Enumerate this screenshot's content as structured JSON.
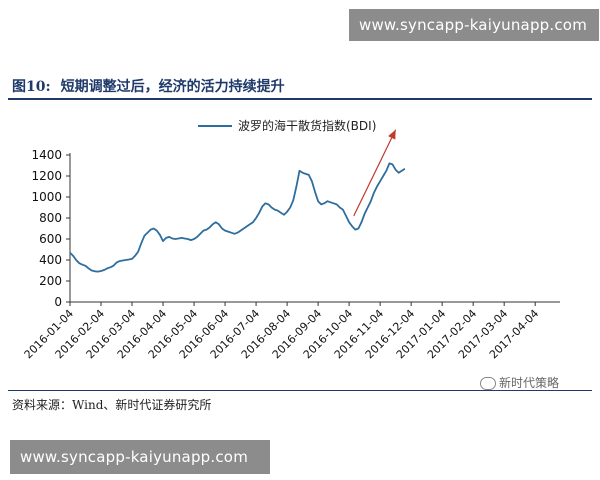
{
  "watermark": "www.syncapp-kaiyunapp.com",
  "figure": {
    "label": "图10:",
    "title": "短期调整过后，经济的活力持续提升",
    "source": "资料来源：Wind、新时代证券研究所",
    "brand": "新时代策略"
  },
  "chart_data": {
    "type": "line",
    "title": "",
    "xlabel": "",
    "ylabel": "",
    "ylim": [
      0,
      1400
    ],
    "yticks": [
      0,
      200,
      400,
      600,
      800,
      1000,
      1200,
      1400
    ],
    "xticks": [
      "2016-01-04",
      "2016-02-04",
      "2016-03-04",
      "2016-04-04",
      "2016-05-04",
      "2016-06-04",
      "2016-07-04",
      "2016-08-04",
      "2016-09-04",
      "2016-10-04",
      "2016-11-04",
      "2016-12-04",
      "2017-01-04",
      "2017-02-04",
      "2017-03-04",
      "2017-04-04"
    ],
    "grid": false,
    "legend": "top-center",
    "color": "#2e6e9e",
    "annotation": "red-up-arrow",
    "series": [
      {
        "name": "波罗的海干散货指数(BDI)",
        "points": [
          [
            0,
            470
          ],
          [
            0.1,
            440
          ],
          [
            0.2,
            400
          ],
          [
            0.3,
            370
          ],
          [
            0.4,
            355
          ],
          [
            0.5,
            345
          ],
          [
            0.6,
            320
          ],
          [
            0.7,
            300
          ],
          [
            0.8,
            292
          ],
          [
            0.9,
            290
          ],
          [
            1.0,
            295
          ],
          [
            1.1,
            305
          ],
          [
            1.2,
            320
          ],
          [
            1.3,
            330
          ],
          [
            1.4,
            345
          ],
          [
            1.5,
            375
          ],
          [
            1.6,
            390
          ],
          [
            1.7,
            395
          ],
          [
            1.8,
            400
          ],
          [
            1.9,
            405
          ],
          [
            2.0,
            410
          ],
          [
            2.1,
            440
          ],
          [
            2.2,
            480
          ],
          [
            2.3,
            560
          ],
          [
            2.4,
            630
          ],
          [
            2.5,
            660
          ],
          [
            2.6,
            690
          ],
          [
            2.7,
            700
          ],
          [
            2.8,
            680
          ],
          [
            2.9,
            640
          ],
          [
            3.0,
            580
          ],
          [
            3.1,
            610
          ],
          [
            3.2,
            620
          ],
          [
            3.3,
            605
          ],
          [
            3.4,
            600
          ],
          [
            3.5,
            605
          ],
          [
            3.6,
            610
          ],
          [
            3.7,
            605
          ],
          [
            3.8,
            600
          ],
          [
            3.9,
            590
          ],
          [
            4.0,
            600
          ],
          [
            4.1,
            620
          ],
          [
            4.2,
            650
          ],
          [
            4.3,
            680
          ],
          [
            4.4,
            690
          ],
          [
            4.5,
            710
          ],
          [
            4.6,
            740
          ],
          [
            4.7,
            760
          ],
          [
            4.8,
            740
          ],
          [
            4.9,
            700
          ],
          [
            5.0,
            680
          ],
          [
            5.1,
            670
          ],
          [
            5.2,
            660
          ],
          [
            5.3,
            650
          ],
          [
            5.4,
            660
          ],
          [
            5.5,
            680
          ],
          [
            5.6,
            700
          ],
          [
            5.7,
            720
          ],
          [
            5.8,
            740
          ],
          [
            5.9,
            760
          ],
          [
            6.0,
            800
          ],
          [
            6.1,
            850
          ],
          [
            6.2,
            910
          ],
          [
            6.3,
            940
          ],
          [
            6.4,
            930
          ],
          [
            6.5,
            900
          ],
          [
            6.6,
            880
          ],
          [
            6.7,
            870
          ],
          [
            6.8,
            850
          ],
          [
            6.9,
            830
          ],
          [
            7.0,
            860
          ],
          [
            7.1,
            900
          ],
          [
            7.2,
            970
          ],
          [
            7.3,
            1100
          ],
          [
            7.4,
            1250
          ],
          [
            7.5,
            1230
          ],
          [
            7.6,
            1220
          ],
          [
            7.7,
            1210
          ],
          [
            7.8,
            1150
          ],
          [
            7.9,
            1050
          ],
          [
            8.0,
            960
          ],
          [
            8.1,
            930
          ],
          [
            8.2,
            940
          ],
          [
            8.3,
            960
          ],
          [
            8.4,
            950
          ],
          [
            8.5,
            940
          ],
          [
            8.6,
            930
          ],
          [
            8.7,
            900
          ],
          [
            8.8,
            880
          ],
          [
            8.9,
            820
          ],
          [
            9.0,
            760
          ],
          [
            9.1,
            720
          ],
          [
            9.2,
            690
          ],
          [
            9.3,
            700
          ],
          [
            9.4,
            760
          ],
          [
            9.5,
            840
          ],
          [
            9.6,
            900
          ],
          [
            9.7,
            960
          ],
          [
            9.8,
            1040
          ],
          [
            9.9,
            1100
          ],
          [
            10.0,
            1150
          ],
          [
            10.1,
            1200
          ],
          [
            10.2,
            1250
          ],
          [
            10.3,
            1320
          ],
          [
            10.4,
            1310
          ],
          [
            10.5,
            1260
          ],
          [
            10.6,
            1230
          ],
          [
            10.7,
            1250
          ],
          [
            10.8,
            1270
          ]
        ]
      }
    ]
  }
}
